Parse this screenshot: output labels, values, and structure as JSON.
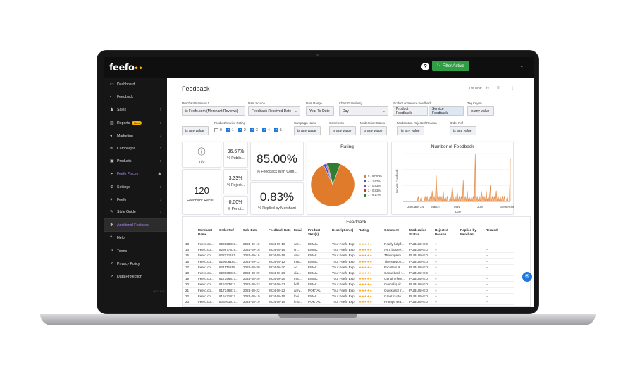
{
  "app": {
    "logo": "feefo",
    "filter_label": "Filter Active"
  },
  "sidebar": {
    "items": [
      {
        "label": "Dashboard",
        "icon": "monitor-icon",
        "chevron": false,
        "style": "normal"
      },
      {
        "label": "Feedback",
        "icon": "chat-icon",
        "chevron": false,
        "style": "normal"
      },
      {
        "label": "Sales",
        "icon": "person-icon",
        "chevron": true,
        "style": "normal"
      },
      {
        "label": "Reports",
        "icon": "chart-icon",
        "chevron": true,
        "style": "normal",
        "badge": "New"
      },
      {
        "label": "Marketing",
        "icon": "megaphone-icon",
        "chevron": true,
        "style": "normal"
      },
      {
        "label": "Campaigns",
        "icon": "mail-icon",
        "chevron": true,
        "style": "normal"
      },
      {
        "label": "Products",
        "icon": "box-icon",
        "chevron": true,
        "style": "normal"
      },
      {
        "label": "Feefo Places",
        "icon": "location-icon",
        "chevron": false,
        "style": "purple",
        "dot": "✱"
      },
      {
        "label": "Settings",
        "icon": "gear-icon",
        "chevron": true,
        "style": "normal"
      },
      {
        "label": "Feefo",
        "icon": "feefo-icon",
        "chevron": true,
        "style": "normal"
      },
      {
        "label": "Style Guide",
        "icon": "brush-icon",
        "chevron": true,
        "style": "normal"
      },
      {
        "label": "Additional Features",
        "icon": "star-icon",
        "chevron": false,
        "style": "purple-active"
      },
      {
        "label": "Help",
        "icon": "help-icon",
        "chevron": false,
        "style": "normal"
      },
      {
        "label": "Terms",
        "icon": "external-link-icon",
        "chevron": false,
        "style": "normal"
      },
      {
        "label": "Privacy Policy",
        "icon": "external-link-icon",
        "chevron": false,
        "style": "normal"
      },
      {
        "label": "Data Protection",
        "icon": "external-link-icon",
        "chevron": false,
        "style": "normal"
      }
    ],
    "version": "v8.716.0"
  },
  "page": {
    "title": "Feedback",
    "updated": "just now"
  },
  "filters": {
    "merchant_label": "Merchant Name(s) *",
    "merchant_value": "is Feefo.com (Merchant Reviews)",
    "date_source_label": "Date Source",
    "date_source_value": "Feedback Received Date",
    "date_range_label": "Date Range",
    "date_range_value": "Year To Date",
    "granularity_label": "Chart Granularity",
    "granularity_value": "Day",
    "product_service_label": "Product or Service Feedback",
    "product_option": "Product Feedback",
    "service_option": "Service Feedback",
    "tag_label": "Tag Key(s)",
    "tag_value": "is any value",
    "rating_label": "Product/Service Rating",
    "rating_options": [
      "0",
      "1",
      "2",
      "3",
      "4",
      "5"
    ],
    "rating_any": "is any value",
    "campaign_label": "Campaign Name",
    "campaign_value": "is any value",
    "comments_label": "Comments",
    "comments_value": "is any value",
    "moderation_label": "Moderation Status",
    "moderation_value": "is any value",
    "rejected_label": "Moderation Rejected Reason",
    "rejected_value": "is any value",
    "order_ref_label": "Order Ref",
    "order_ref_value": "is any value"
  },
  "tiles": {
    "info_label": "Info",
    "published_value": "96.67%",
    "published_label": "% Publis...",
    "rejected_value": "3.33%",
    "rejected_label": "% Reject...",
    "pending_value": "0.00%",
    "pending_label": "% Pendi...",
    "comment_value": "85.00%",
    "comment_label": "% Feedback With Com...",
    "received_value": "120",
    "received_label": "Feedback Recei...",
    "replied_value": "0.83%",
    "replied_label": "% Replied by Merchant"
  },
  "rating_chart": {
    "title": "Rating",
    "slices": [
      {
        "label": "5 - 87.50%",
        "value": 87.5,
        "color": "#e07b2c"
      },
      {
        "label": "4 - 1.67%",
        "value": 1.67,
        "color": "#3d55c9"
      },
      {
        "label": "3 - 0.83%",
        "value": 0.83,
        "color": "#8e44ad"
      },
      {
        "label": "2 - 0.83%",
        "value": 0.83,
        "color": "#c0392b"
      },
      {
        "label": "1 - 9.17%",
        "value": 9.17,
        "color": "#2e7d32"
      }
    ]
  },
  "chart_data": {
    "type": "area",
    "title": "Number of Feedback",
    "xlabel": "Day",
    "ylabel": "Service Feedback",
    "x_ticks": [
      "January '24",
      "March",
      "May",
      "July",
      "September"
    ],
    "values": [
      0,
      0,
      0,
      0,
      0,
      0,
      0,
      0,
      0,
      0,
      0,
      0,
      0,
      0,
      0,
      1,
      0,
      0,
      1,
      0,
      0,
      0,
      1,
      0,
      1,
      0,
      0,
      1,
      0,
      2,
      0,
      1,
      0,
      5,
      1,
      0,
      1,
      0,
      1,
      0,
      2,
      0,
      1,
      0,
      1,
      0,
      0,
      1,
      0,
      3,
      1,
      0,
      1,
      0,
      2,
      0,
      1,
      0,
      1,
      0,
      4,
      0,
      1,
      0,
      2,
      0,
      1,
      0,
      1,
      0,
      1,
      0,
      9,
      0,
      1,
      0,
      1,
      0,
      2,
      1,
      0,
      1,
      0,
      2,
      0,
      1,
      0,
      3,
      0,
      1,
      0,
      1,
      0,
      2,
      0,
      1,
      0,
      1,
      0,
      1,
      0,
      1,
      0,
      0,
      1,
      0,
      0,
      8
    ]
  },
  "table": {
    "title": "Feedback",
    "columns": [
      "",
      "Merchant Name",
      "Order Ref",
      "Sale Date",
      "Feedback Date",
      "Email",
      "Product SKU(s)",
      "Description(s)",
      "Rating",
      "Comment",
      "Moderation Status",
      "Rejected Reason",
      "Replied by Merchant",
      "Rerated"
    ],
    "rows": [
      [
        "13",
        "Feefo.co...",
        "829628818...",
        "2024-09-19",
        "2024-09-19",
        "sar...",
        "EMAIL",
        "Your Feefo Exp",
        "★★★★★",
        "Really helpf...",
        "PUBLISHED",
        "○",
        "red",
        "--"
      ],
      [
        "14",
        "Feefo.co...",
        "829977819...",
        "2024-09-16",
        "2024-09-16",
        "cri...",
        "EMAIL",
        "Your Feefo Exp",
        "★★★★★",
        "As a busine...",
        "PUBLISHED",
        "○",
        "red",
        "--"
      ],
      [
        "15",
        "Feefo.co...",
        "822171181...",
        "2024-09-16",
        "2024-09-16",
        "dav...",
        "EMAIL",
        "Your Feefo Exp",
        "★★★★★",
        "The implem...",
        "PUBLISHED",
        "○",
        "red",
        "--"
      ],
      [
        "16",
        "Feefo.co...",
        "829508180...",
        "2024-09-12",
        "2024-09-12",
        "mat...",
        "EMAIL",
        "Your Feefo Exp",
        "★★★★★",
        "The support ...",
        "PUBLISHED",
        "○",
        "red",
        "--"
      ],
      [
        "17",
        "Feefo.co...",
        "821176818...",
        "2024-08-30",
        "2024-08-30",
        "ad...",
        "EMAIL",
        "Your Feefo Exp",
        "★★★★★",
        "Excellent & ...",
        "PUBLISHED",
        "○",
        "red",
        "--"
      ],
      [
        "18",
        "Feefo.co...",
        "820868818...",
        "2024-08-29",
        "2024-08-29",
        "dia...",
        "EMAIL",
        "Your Feefo Exp",
        "★★★★★",
        "Came back f...",
        "PUBLISHED",
        "○",
        "red",
        "--"
      ],
      [
        "19",
        "Feefo.co...",
        "817296817...",
        "2024-08-29",
        "2024-08-29",
        "mic...",
        "EMAIL",
        "Your Feefo Exp",
        "★★★★★",
        "Genuine fee...",
        "PUBLISHED",
        "○",
        "red",
        "--"
      ],
      [
        "20",
        "Feefo.co...",
        "815393817...",
        "2024-08-23",
        "2024-08-23",
        "holl...",
        "EMAIL",
        "Your Feefo Exp",
        "★★★★★",
        "Overall quic...",
        "PUBLISHED",
        "○",
        "red",
        "--"
      ],
      [
        "21",
        "Feefo.co...",
        "817346817...",
        "2024-08-22",
        "2024-08-22",
        "amy...",
        "PORTAL",
        "Your Feefo Exp",
        "★★★★★",
        "Quick and fri...",
        "PUBLISHED",
        "○",
        "red",
        "--"
      ],
      [
        "22",
        "Feefo.co...",
        "815471817...",
        "2024-08-19",
        "2024-08-19",
        "loui...",
        "EMAIL",
        "Your Feefo Exp",
        "★★★★★",
        "Great custo...",
        "PUBLISHED",
        "○",
        "red",
        "--"
      ],
      [
        "23",
        "Feefo.co...",
        "806461817...",
        "2024-08-19",
        "2024-08-19",
        "imo...",
        "PORTAL",
        "Your Feefo Exp",
        "★★★★★",
        "Prompt, rea...",
        "PUBLISHED",
        "○",
        "red",
        "--"
      ]
    ]
  }
}
